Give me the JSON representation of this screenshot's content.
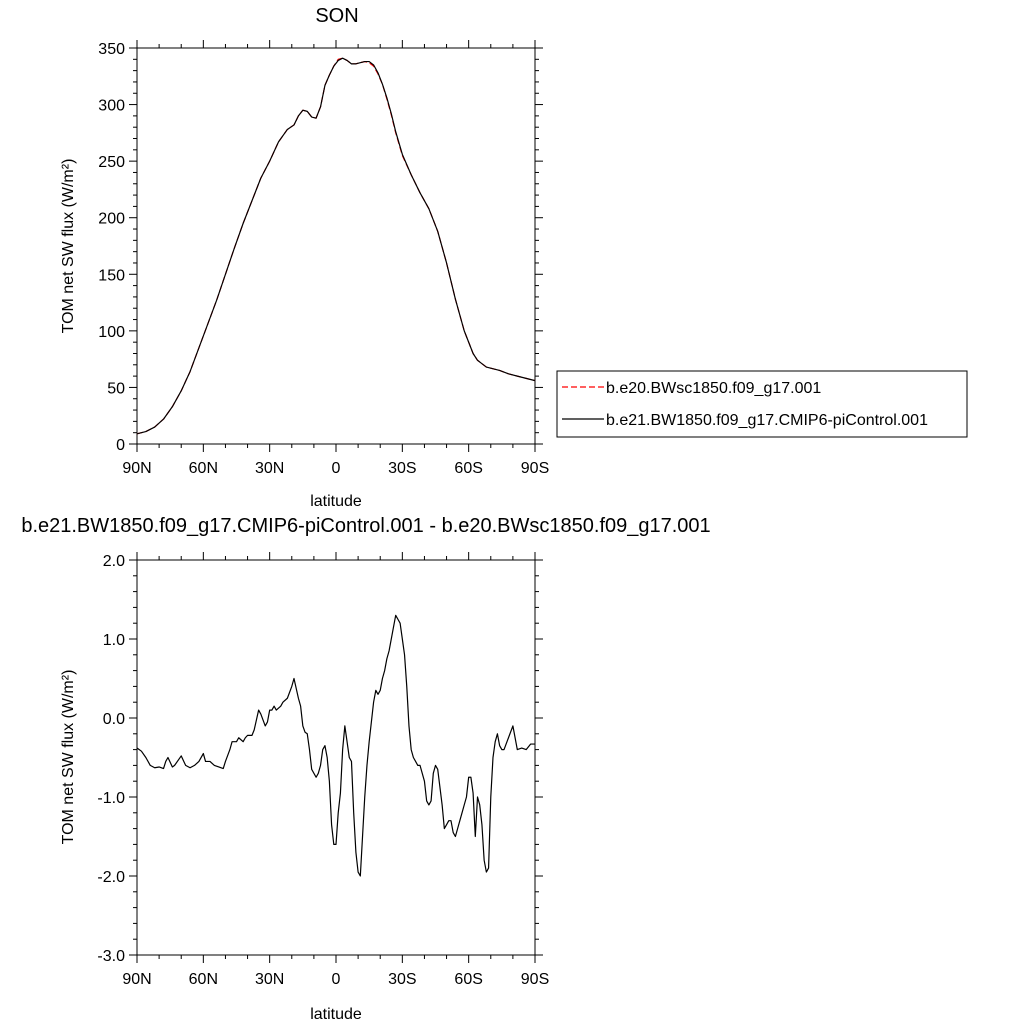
{
  "chart_data": [
    {
      "type": "line",
      "title": "SON",
      "xlabel": "latitude",
      "ylabel": "TOM net SW flux (W/m²)",
      "ylim": [
        0,
        350
      ],
      "xlim": [
        -90,
        90
      ],
      "x_tick_values": [
        -90,
        -60,
        -30,
        0,
        30,
        60,
        90
      ],
      "x_tick_labels": [
        "90N",
        "60N",
        "30N",
        "0",
        "30S",
        "60S",
        "90S"
      ],
      "y_tick_values": [
        0,
        50,
        100,
        150,
        200,
        250,
        300,
        350
      ],
      "y_tick_labels": [
        "0",
        "50",
        "100",
        "150",
        "200",
        "250",
        "300",
        "350"
      ],
      "grid": false,
      "legend_position": "right",
      "series": [
        {
          "name": "b.e20.BWsc1850.f09_g17.001",
          "color": "#ff0000",
          "dash": "dashed",
          "x": [
            -90,
            -86,
            -82,
            -78,
            -74,
            -70,
            -66,
            -62,
            -58,
            -54,
            -50,
            -46,
            -42,
            -38,
            -34,
            -30,
            -26,
            -22,
            -19,
            -17,
            -15,
            -13,
            -11,
            -9,
            -7,
            -5,
            -3,
            -1,
            1,
            3,
            5,
            7,
            9,
            11,
            13,
            15,
            17,
            19,
            21,
            23,
            25,
            27,
            30,
            34,
            38,
            42,
            46,
            50,
            54,
            58,
            62,
            64,
            66,
            68,
            70,
            74,
            78,
            82,
            86,
            90
          ],
          "y": [
            9,
            11,
            15,
            22,
            33,
            47,
            64,
            85,
            106,
            127,
            150,
            173,
            195,
            215,
            235,
            250,
            267,
            278,
            282,
            290,
            295,
            294,
            289,
            288,
            298,
            317,
            326,
            334,
            340,
            341,
            339,
            336,
            336,
            337,
            338,
            337,
            334,
            327,
            318,
            305,
            291,
            275,
            255,
            238,
            222,
            208,
            188,
            160,
            128,
            100,
            80,
            74,
            71,
            68,
            67,
            65,
            62,
            60,
            58,
            56
          ]
        },
        {
          "name": "b.e21.BW1850.f09_g17.CMIP6-piControl.001",
          "color": "#000000",
          "dash": "solid",
          "x": [
            -90,
            -86,
            -82,
            -78,
            -74,
            -70,
            -66,
            -62,
            -58,
            -54,
            -50,
            -46,
            -42,
            -38,
            -34,
            -30,
            -26,
            -22,
            -19,
            -17,
            -15,
            -13,
            -11,
            -9,
            -7,
            -5,
            -3,
            -1,
            1,
            3,
            5,
            7,
            9,
            11,
            13,
            15,
            17,
            19,
            21,
            23,
            25,
            27,
            30,
            34,
            38,
            42,
            46,
            50,
            54,
            58,
            62,
            64,
            66,
            68,
            70,
            74,
            78,
            82,
            86,
            90
          ],
          "y": [
            9,
            11,
            15,
            22,
            33,
            47,
            64,
            85,
            106,
            127,
            150,
            173,
            195,
            215,
            235,
            250,
            267,
            278,
            282,
            290,
            295,
            294,
            289,
            288,
            298,
            317,
            326,
            334,
            339,
            341,
            339,
            336,
            336,
            337,
            338,
            338,
            335,
            328,
            318,
            306,
            292,
            276,
            256,
            238,
            222,
            208,
            188,
            160,
            128,
            100,
            80,
            74,
            71,
            68,
            67,
            65,
            62,
            60,
            58,
            56
          ]
        }
      ]
    },
    {
      "type": "line",
      "title": "b.e21.BW1850.f09_g17.CMIP6-piControl.001 - b.e20.BWsc1850.f09_g17.001",
      "xlabel": "latitude",
      "ylabel": "TOM net SW flux (W/m²)",
      "ylim": [
        -3.0,
        2.0
      ],
      "xlim": [
        -90,
        90
      ],
      "x_tick_values": [
        -90,
        -60,
        -30,
        0,
        30,
        60,
        90
      ],
      "x_tick_labels": [
        "90N",
        "60N",
        "30N",
        "0",
        "30S",
        "60S",
        "90S"
      ],
      "y_tick_values": [
        -3.0,
        -2.0,
        -1.0,
        0.0,
        1.0,
        2.0
      ],
      "y_tick_labels": [
        "-3.0",
        "-2.0",
        "-1.0",
        "0.0",
        "1.0",
        "2.0"
      ],
      "grid": false,
      "series": [
        {
          "color": "#000000",
          "dash": "solid",
          "x": [
            -90,
            -88,
            -86,
            -84,
            -82,
            -80,
            -78,
            -77,
            -76,
            -74,
            -73,
            -71,
            -70,
            -68,
            -66,
            -64,
            -62,
            -60,
            -59,
            -57,
            -55,
            -53,
            -51,
            -50,
            -48,
            -47,
            -45,
            -44,
            -42,
            -41,
            -40,
            -38,
            -37,
            -35,
            -34,
            -32,
            -31,
            -30,
            -29,
            -28,
            -27,
            -25,
            -24,
            -22,
            -20,
            -19,
            -17,
            -16,
            -15,
            -14,
            -13,
            -12,
            -11,
            -9,
            -8,
            -7,
            -6,
            -5,
            -4,
            -3,
            -2,
            -1,
            0,
            1,
            2,
            3,
            4,
            5,
            6,
            7,
            8,
            9,
            10,
            11,
            12,
            13,
            14,
            15,
            16,
            17,
            18,
            19,
            20,
            21,
            22,
            23,
            24,
            25,
            26,
            27,
            28,
            29,
            30,
            31,
            32,
            33,
            34,
            35,
            36,
            37,
            38,
            40,
            41,
            42,
            43,
            44,
            45,
            46,
            48,
            49,
            50,
            51,
            52,
            53,
            54,
            55,
            56,
            57,
            58,
            59,
            60,
            61,
            62,
            63,
            64,
            65,
            66,
            67,
            68,
            69,
            70,
            71,
            72,
            73,
            74,
            75,
            76,
            78,
            80,
            82,
            84,
            86,
            88,
            90
          ],
          "y": [
            -0.38,
            -0.42,
            -0.5,
            -0.6,
            -0.63,
            -0.62,
            -0.64,
            -0.55,
            -0.5,
            -0.62,
            -0.6,
            -0.52,
            -0.48,
            -0.6,
            -0.63,
            -0.6,
            -0.55,
            -0.45,
            -0.55,
            -0.55,
            -0.6,
            -0.62,
            -0.64,
            -0.55,
            -0.4,
            -0.3,
            -0.3,
            -0.25,
            -0.3,
            -0.25,
            -0.22,
            -0.22,
            -0.15,
            0.1,
            0.05,
            -0.1,
            -0.05,
            0.1,
            0.1,
            0.15,
            0.1,
            0.15,
            0.2,
            0.25,
            0.4,
            0.5,
            0.25,
            0.15,
            -0.1,
            -0.18,
            -0.2,
            -0.4,
            -0.65,
            -0.75,
            -0.7,
            -0.6,
            -0.4,
            -0.35,
            -0.5,
            -0.8,
            -1.35,
            -1.6,
            -1.6,
            -1.2,
            -0.95,
            -0.4,
            -0.1,
            -0.3,
            -0.5,
            -0.55,
            -1.2,
            -1.7,
            -1.95,
            -2.0,
            -1.5,
            -1.0,
            -0.6,
            -0.3,
            -0.05,
            0.2,
            0.35,
            0.3,
            0.35,
            0.5,
            0.6,
            0.75,
            0.85,
            1.0,
            1.15,
            1.3,
            1.25,
            1.2,
            1.0,
            0.8,
            0.4,
            -0.1,
            -0.4,
            -0.5,
            -0.55,
            -0.6,
            -0.6,
            -0.8,
            -1.05,
            -1.1,
            -1.05,
            -0.7,
            -0.6,
            -0.65,
            -1.1,
            -1.4,
            -1.35,
            -1.3,
            -1.3,
            -1.45,
            -1.5,
            -1.4,
            -1.3,
            -1.2,
            -1.1,
            -1.0,
            -0.75,
            -0.75,
            -0.95,
            -1.5,
            -1.0,
            -1.1,
            -1.35,
            -1.8,
            -1.95,
            -1.9,
            -1.0,
            -0.5,
            -0.3,
            -0.2,
            -0.35,
            -0.4,
            -0.4,
            -0.25,
            -0.1,
            -0.4,
            -0.38,
            -0.4,
            -0.33,
            -0.33
          ]
        }
      ]
    }
  ]
}
